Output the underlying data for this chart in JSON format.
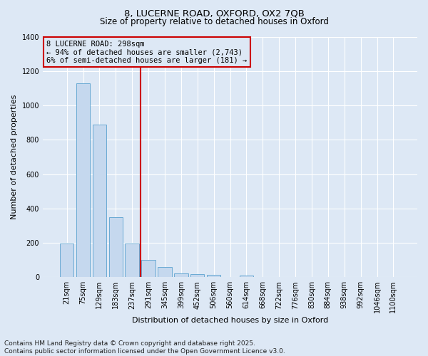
{
  "title_line1": "8, LUCERNE ROAD, OXFORD, OX2 7QB",
  "title_line2": "Size of property relative to detached houses in Oxford",
  "xlabel": "Distribution of detached houses by size in Oxford",
  "ylabel": "Number of detached properties",
  "bar_labels": [
    "21sqm",
    "75sqm",
    "129sqm",
    "183sqm",
    "237sqm",
    "291sqm",
    "345sqm",
    "399sqm",
    "452sqm",
    "506sqm",
    "560sqm",
    "614sqm",
    "668sqm",
    "722sqm",
    "776sqm",
    "830sqm",
    "884sqm",
    "938sqm",
    "992sqm",
    "1046sqm",
    "1100sqm"
  ],
  "bar_values": [
    195,
    1130,
    890,
    350,
    195,
    100,
    60,
    22,
    18,
    12,
    0,
    10,
    0,
    0,
    0,
    0,
    0,
    0,
    0,
    0,
    0
  ],
  "bar_color": "#c5d8ee",
  "bar_edge_color": "#6aaad4",
  "background_color": "#dde8f5",
  "vline_x_idx": 5,
  "vline_color": "#cc0000",
  "annotation_line1": "8 LUCERNE ROAD: 298sqm",
  "annotation_line2": "← 94% of detached houses are smaller (2,743)",
  "annotation_line3": "6% of semi-detached houses are larger (181) →",
  "annotation_box_color": "#cc0000",
  "ylim": [
    0,
    1400
  ],
  "yticks": [
    0,
    200,
    400,
    600,
    800,
    1000,
    1200,
    1400
  ],
  "grid_color": "#ffffff",
  "title_fontsize": 9.5,
  "subtitle_fontsize": 8.5,
  "axis_label_fontsize": 8,
  "tick_fontsize": 7,
  "annotation_fontsize": 7.5,
  "footer_fontsize": 6.5
}
